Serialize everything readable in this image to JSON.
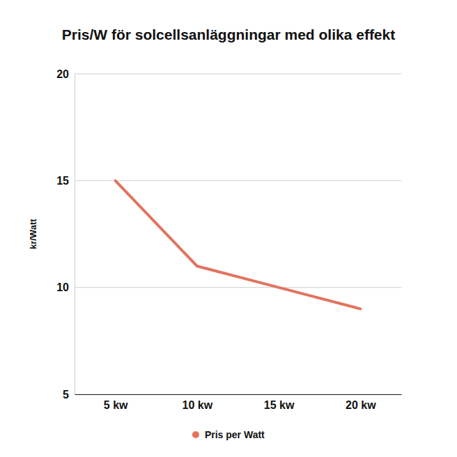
{
  "chart_data": {
    "type": "line",
    "title": "Pris/W för solcellsanläggningar med olika effekt",
    "y_label": "kr/Watt",
    "categories": [
      "5 kw",
      "10 kw",
      "15 kw",
      "20 kw"
    ],
    "series": [
      {
        "name": "Pris per Watt",
        "color": "#e2735f",
        "values": [
          15,
          11,
          10,
          9
        ]
      }
    ],
    "ylim": [
      5,
      20
    ],
    "yticks": [
      5,
      10,
      15,
      20
    ],
    "grid": true,
    "legend": "bottom"
  }
}
